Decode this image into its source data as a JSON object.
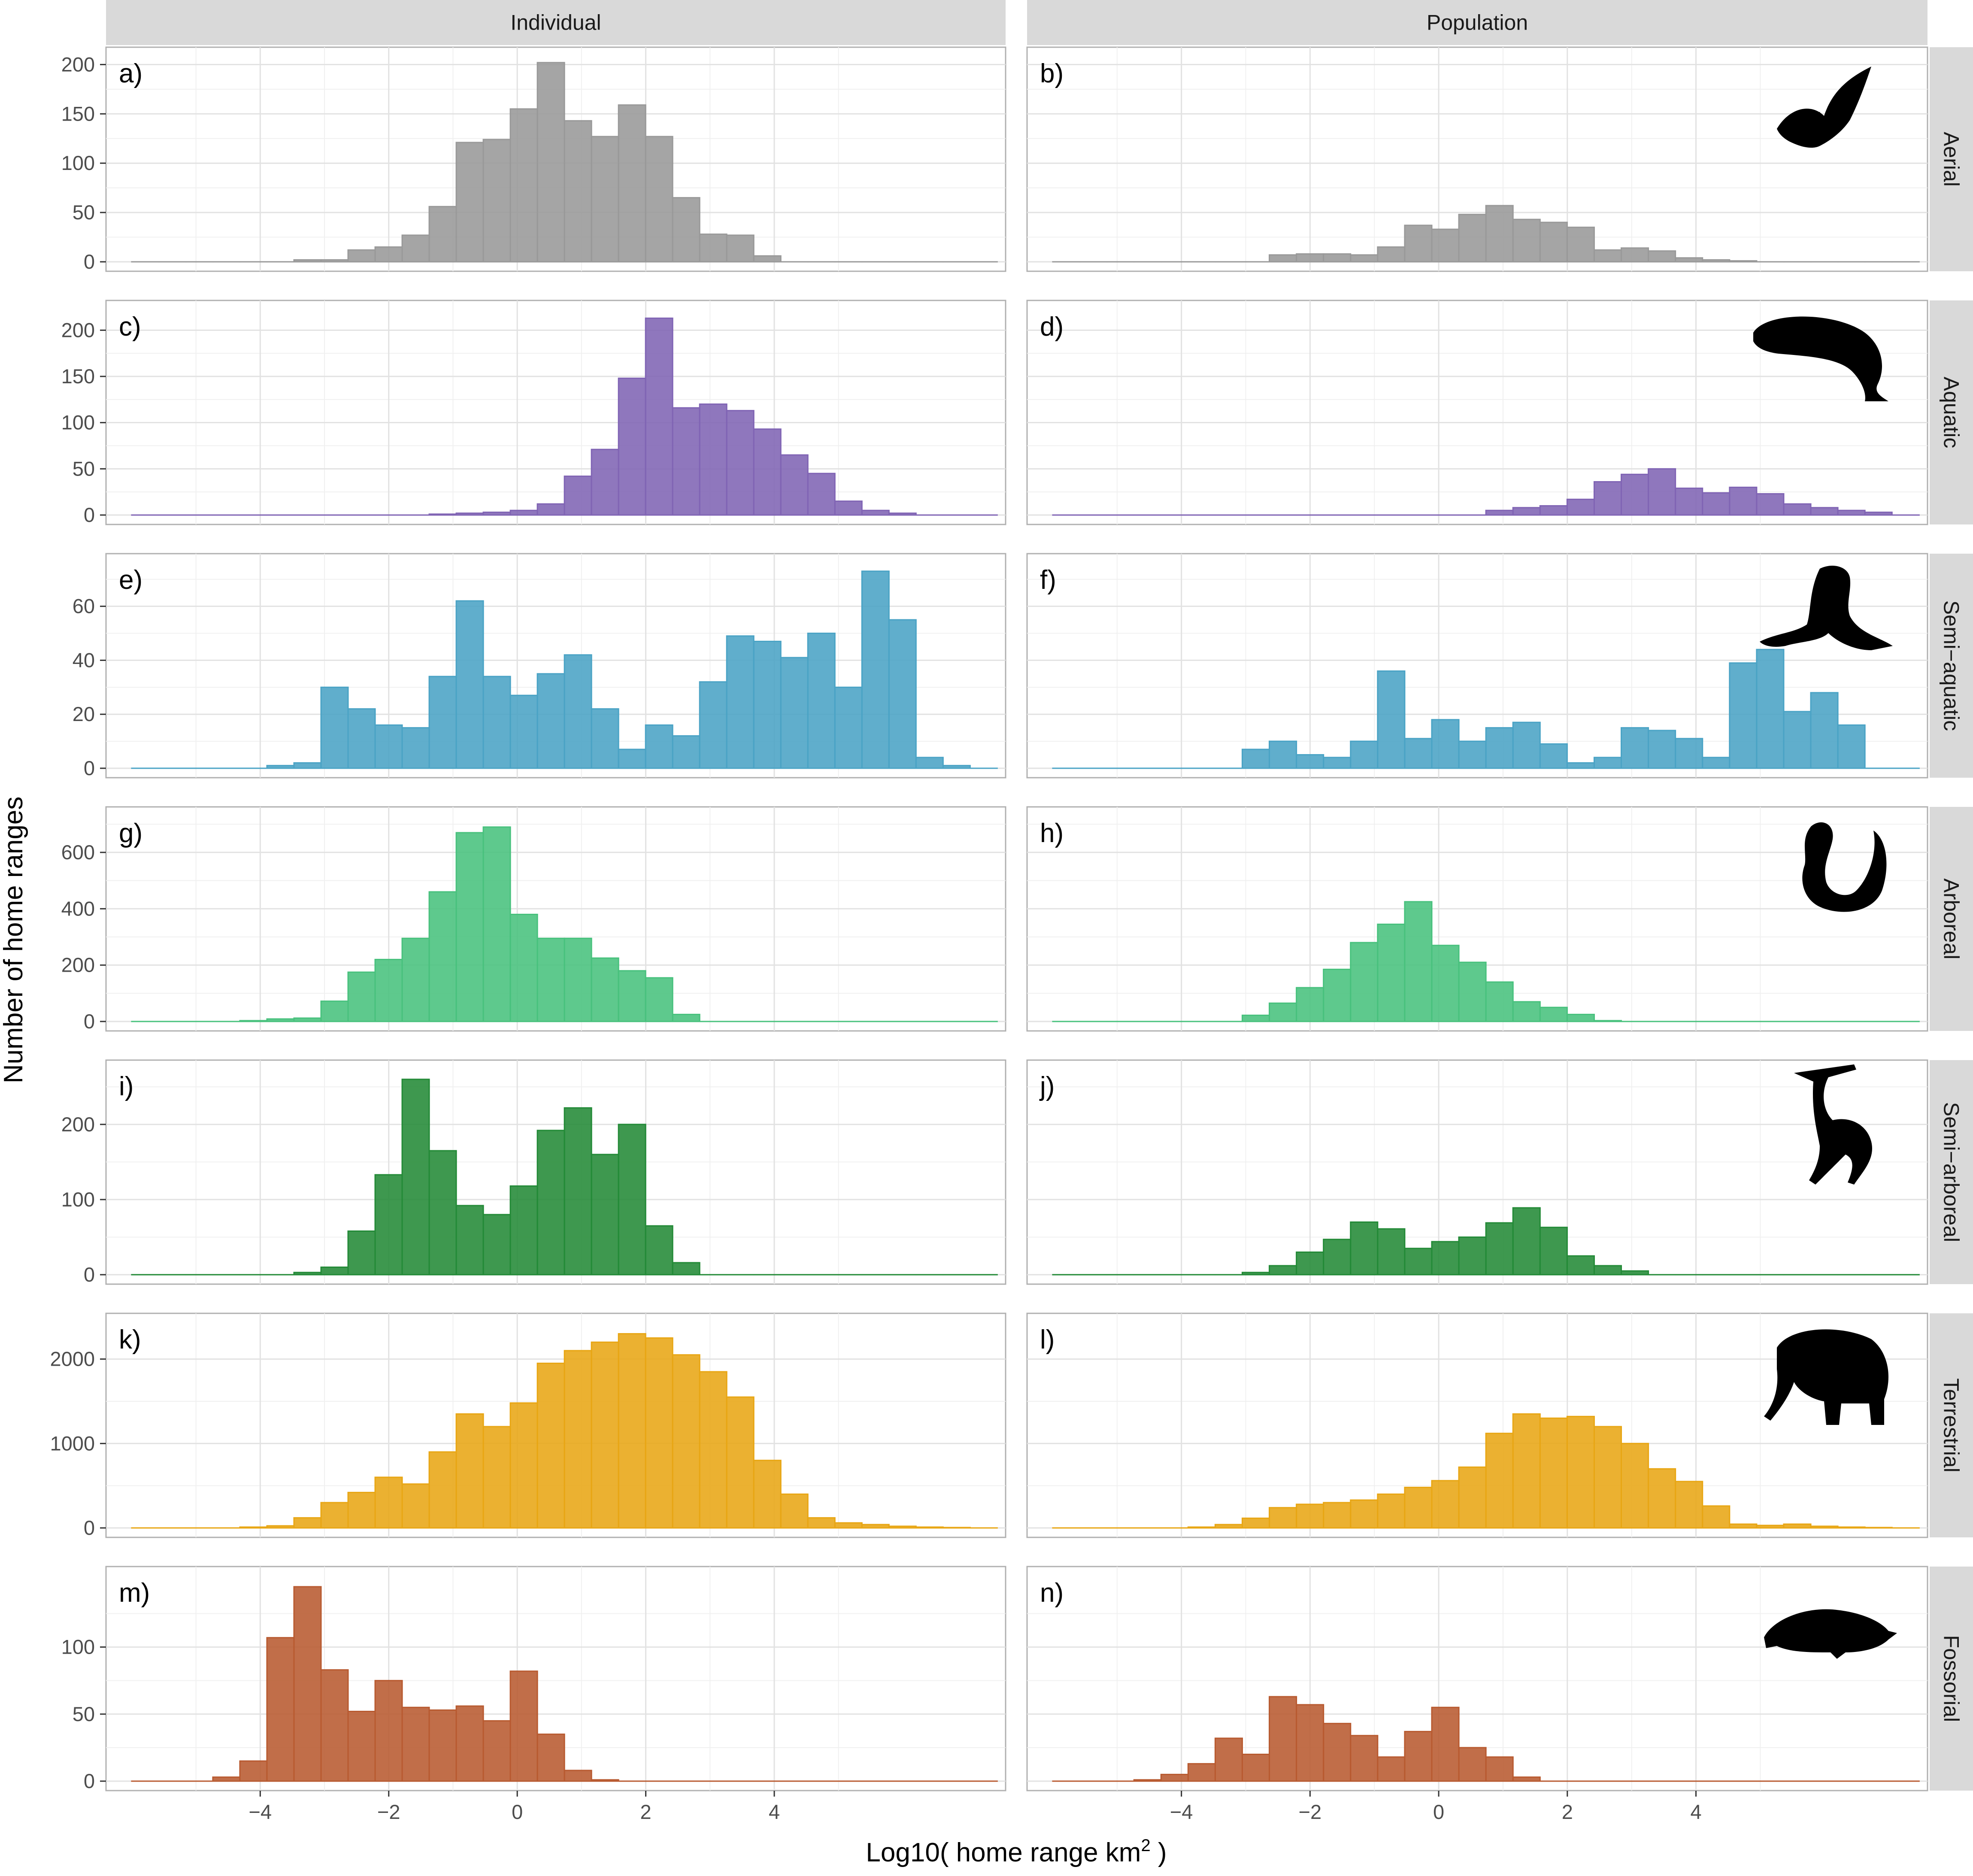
{
  "chart_data": {
    "type": "bar",
    "subtype": "faceted-histogram",
    "xlabel": "Log10( home range km",
    "xlabel_superscript": "2",
    "xlabel_suffix": " )",
    "ylabel": "Number of home ranges",
    "x_ticks": [
      -4,
      -2,
      0,
      2,
      4
    ],
    "xlim": [
      -6.4,
      7.6
    ],
    "bin_start": -6.0,
    "bin_width": 0.4209,
    "grid": true,
    "column_facets": [
      "Individual",
      "Population"
    ],
    "row_facets": [
      {
        "name": "Aerial",
        "color": "#999999",
        "icon": "bat-icon",
        "ylim": [
          0,
          208
        ],
        "y_ticks": [
          0,
          50,
          100,
          150,
          200
        ],
        "panels": [
          {
            "tag": "a)",
            "values": [
              0,
              0,
              0,
              0,
              0,
              0,
              2,
              2,
              12,
              15,
              27,
              56,
              121,
              124,
              155,
              202,
              143,
              127,
              159,
              127,
              65,
              28,
              27,
              6,
              0,
              0,
              0,
              0,
              0,
              0,
              0,
              0
            ]
          },
          {
            "tag": "b)",
            "values": [
              0,
              0,
              0,
              0,
              0,
              0,
              0,
              0,
              7,
              8,
              8,
              7,
              15,
              37,
              33,
              48,
              57,
              43,
              40,
              35,
              12,
              14,
              11,
              4,
              2,
              1,
              0,
              0,
              0,
              0,
              0,
              0
            ]
          }
        ]
      },
      {
        "name": "Aquatic",
        "color": "#8064b4",
        "icon": "manatee-icon",
        "ylim": [
          0,
          222
        ],
        "y_ticks": [
          0,
          50,
          100,
          150,
          200
        ],
        "panels": [
          {
            "tag": "c)",
            "values": [
              0,
              0,
              0,
              0,
              0,
              0,
              0,
              0,
              0,
              0,
              0,
              1,
              2,
              3,
              5,
              12,
              42,
              71,
              148,
              213,
              116,
              120,
              113,
              93,
              65,
              45,
              15,
              5,
              2,
              0,
              0,
              0
            ]
          },
          {
            "tag": "d)",
            "values": [
              0,
              0,
              0,
              0,
              0,
              0,
              0,
              0,
              0,
              0,
              0,
              0,
              0,
              0,
              0,
              0,
              5,
              8,
              10,
              17,
              36,
              44,
              50,
              29,
              24,
              30,
              23,
              12,
              8,
              5,
              3,
              0
            ]
          }
        ]
      },
      {
        "name": "Semi−aquatic",
        "color": "#4aa3c5",
        "icon": "sea-lion-icon",
        "ylim": [
          0,
          76
        ],
        "y_ticks": [
          0,
          20,
          40,
          60
        ],
        "panels": [
          {
            "tag": "e)",
            "values": [
              0,
              0,
              0,
              0,
              0,
              1,
              2,
              30,
              22,
              16,
              15,
              34,
              62,
              34,
              27,
              35,
              42,
              22,
              7,
              16,
              12,
              32,
              49,
              47,
              41,
              50,
              30,
              73,
              55,
              4,
              1,
              0
            ]
          },
          {
            "tag": "f)",
            "values": [
              0,
              0,
              0,
              0,
              0,
              0,
              0,
              7,
              10,
              5,
              4,
              10,
              36,
              11,
              18,
              10,
              15,
              17,
              9,
              2,
              4,
              15,
              14,
              11,
              4,
              39,
              44,
              21,
              28,
              16,
              0,
              0
            ]
          }
        ]
      },
      {
        "name": "Arboreal",
        "color": "#48c17d",
        "icon": "squirrel-icon",
        "ylim": [
          0,
          728
        ],
        "y_ticks": [
          0,
          200,
          400,
          600
        ],
        "panels": [
          {
            "tag": "g)",
            "values": [
              0,
              0,
              0,
              0,
              3,
              9,
              12,
              72,
              175,
              220,
              295,
              460,
              670,
              690,
              380,
              295,
              295,
              225,
              180,
              155,
              25,
              0,
              0,
              0,
              0,
              0,
              0,
              0,
              0,
              0,
              0,
              0
            ]
          },
          {
            "tag": "h)",
            "values": [
              0,
              0,
              0,
              0,
              0,
              0,
              0,
              22,
              65,
              120,
              185,
              280,
              345,
              425,
              270,
              210,
              140,
              70,
              50,
              25,
              3,
              0,
              0,
              0,
              0,
              0,
              0,
              0,
              0,
              0,
              0,
              0
            ]
          }
        ]
      },
      {
        "name": "Semi−arboreal",
        "color": "#238a37",
        "icon": "gibbon-icon",
        "ylim": [
          0,
          273
        ],
        "y_ticks": [
          0,
          100,
          200
        ],
        "panels": [
          {
            "tag": "i)",
            "values": [
              0,
              0,
              0,
              0,
              0,
              0,
              3,
              10,
              58,
              133,
              260,
              165,
              92,
              80,
              118,
              192,
              222,
              160,
              200,
              65,
              16,
              0,
              0,
              0,
              0,
              0,
              0,
              0,
              0,
              0,
              0,
              0
            ]
          },
          {
            "tag": "j)",
            "values": [
              0,
              0,
              0,
              0,
              0,
              0,
              0,
              3,
              12,
              30,
              47,
              70,
              61,
              35,
              44,
              50,
              69,
              89,
              63,
              25,
              12,
              5,
              0,
              0,
              0,
              0,
              0,
              0,
              0,
              0,
              0,
              0
            ]
          }
        ]
      },
      {
        "name": "Terrestrial",
        "color": "#e8a614",
        "icon": "elephant-icon",
        "ylim": [
          0,
          2430
        ],
        "y_ticks": [
          0,
          1000,
          2000
        ],
        "panels": [
          {
            "tag": "k)",
            "values": [
              0,
              0,
              0,
              0,
              10,
              25,
              120,
              300,
              420,
              600,
              520,
              900,
              1350,
              1200,
              1480,
              1950,
              2100,
              2200,
              2300,
              2250,
              2050,
              1850,
              1550,
              800,
              400,
              120,
              60,
              40,
              20,
              10,
              5,
              0
            ]
          },
          {
            "tag": "l)",
            "values": [
              0,
              0,
              0,
              0,
              0,
              10,
              40,
              115,
              240,
              280,
              300,
              330,
              400,
              480,
              560,
              720,
              1120,
              1350,
              1300,
              1320,
              1200,
              1000,
              700,
              550,
              260,
              45,
              30,
              45,
              20,
              10,
              5,
              0
            ]
          }
        ]
      },
      {
        "name": "Fossorial",
        "color": "#b85a30",
        "icon": "mole-icon",
        "ylim": [
          0,
          153
        ],
        "y_ticks": [
          0,
          50,
          100
        ],
        "panels": [
          {
            "tag": "m)",
            "values": [
              0,
              0,
              0,
              3,
              15,
              107,
              145,
              83,
              52,
              75,
              55,
              53,
              56,
              45,
              82,
              35,
              8,
              1,
              0,
              0,
              0,
              0,
              0,
              0,
              0,
              0,
              0,
              0,
              0,
              0,
              0,
              0
            ]
          },
          {
            "tag": "n)",
            "values": [
              0,
              0,
              0,
              1,
              5,
              13,
              32,
              20,
              63,
              57,
              43,
              34,
              18,
              37,
              55,
              25,
              18,
              3,
              0,
              0,
              0,
              0,
              0,
              0,
              0,
              0,
              0,
              0,
              0,
              0,
              0,
              0
            ]
          }
        ]
      }
    ]
  }
}
